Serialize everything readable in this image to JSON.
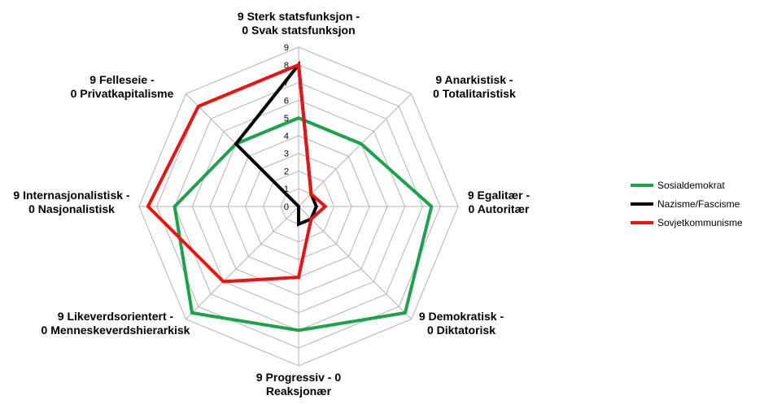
{
  "chart_data": {
    "type": "radar",
    "axes": [
      [
        "9 Sterk statsfunksjon -",
        "0 Svak statsfunksjon"
      ],
      [
        "9 Anarkistisk -",
        "0  Totalitaristisk"
      ],
      [
        "9 Egalitær -",
        "0 Autoritær"
      ],
      [
        "9 Demokratisk -",
        "0 Diktatorisk"
      ],
      [
        "9 Progressiv - 0",
        "Reaksjonær"
      ],
      [
        "9 Likeverdsorientert -",
        "0 Menneskeverdshierarkisk"
      ],
      [
        "9 Internasjonalistisk -",
        "0 Nasjonalistisk"
      ],
      [
        "9 Felleseie -",
        "0 Privatkapitalisme"
      ]
    ],
    "rlim": [
      0,
      9
    ],
    "ticks": [
      "0",
      "1",
      "2",
      "3",
      "4",
      "5",
      "6",
      "7",
      "8",
      "9"
    ],
    "grid": true,
    "legend_position": "right",
    "series": [
      {
        "name": "Sosialdemokrat",
        "color": "#1aa44a",
        "values": [
          5,
          5,
          7.5,
          8.5,
          7,
          8.5,
          7,
          5
        ]
      },
      {
        "name": "Nazisme/Fascisme",
        "color": "#000000",
        "values": [
          8,
          1,
          1,
          1,
          1,
          0,
          0,
          5
        ]
      },
      {
        "name": "Sovjetkommunisme",
        "color": "#ee1111",
        "values": [
          8,
          1,
          1.5,
          1,
          4,
          6,
          8.5,
          8
        ]
      }
    ]
  }
}
